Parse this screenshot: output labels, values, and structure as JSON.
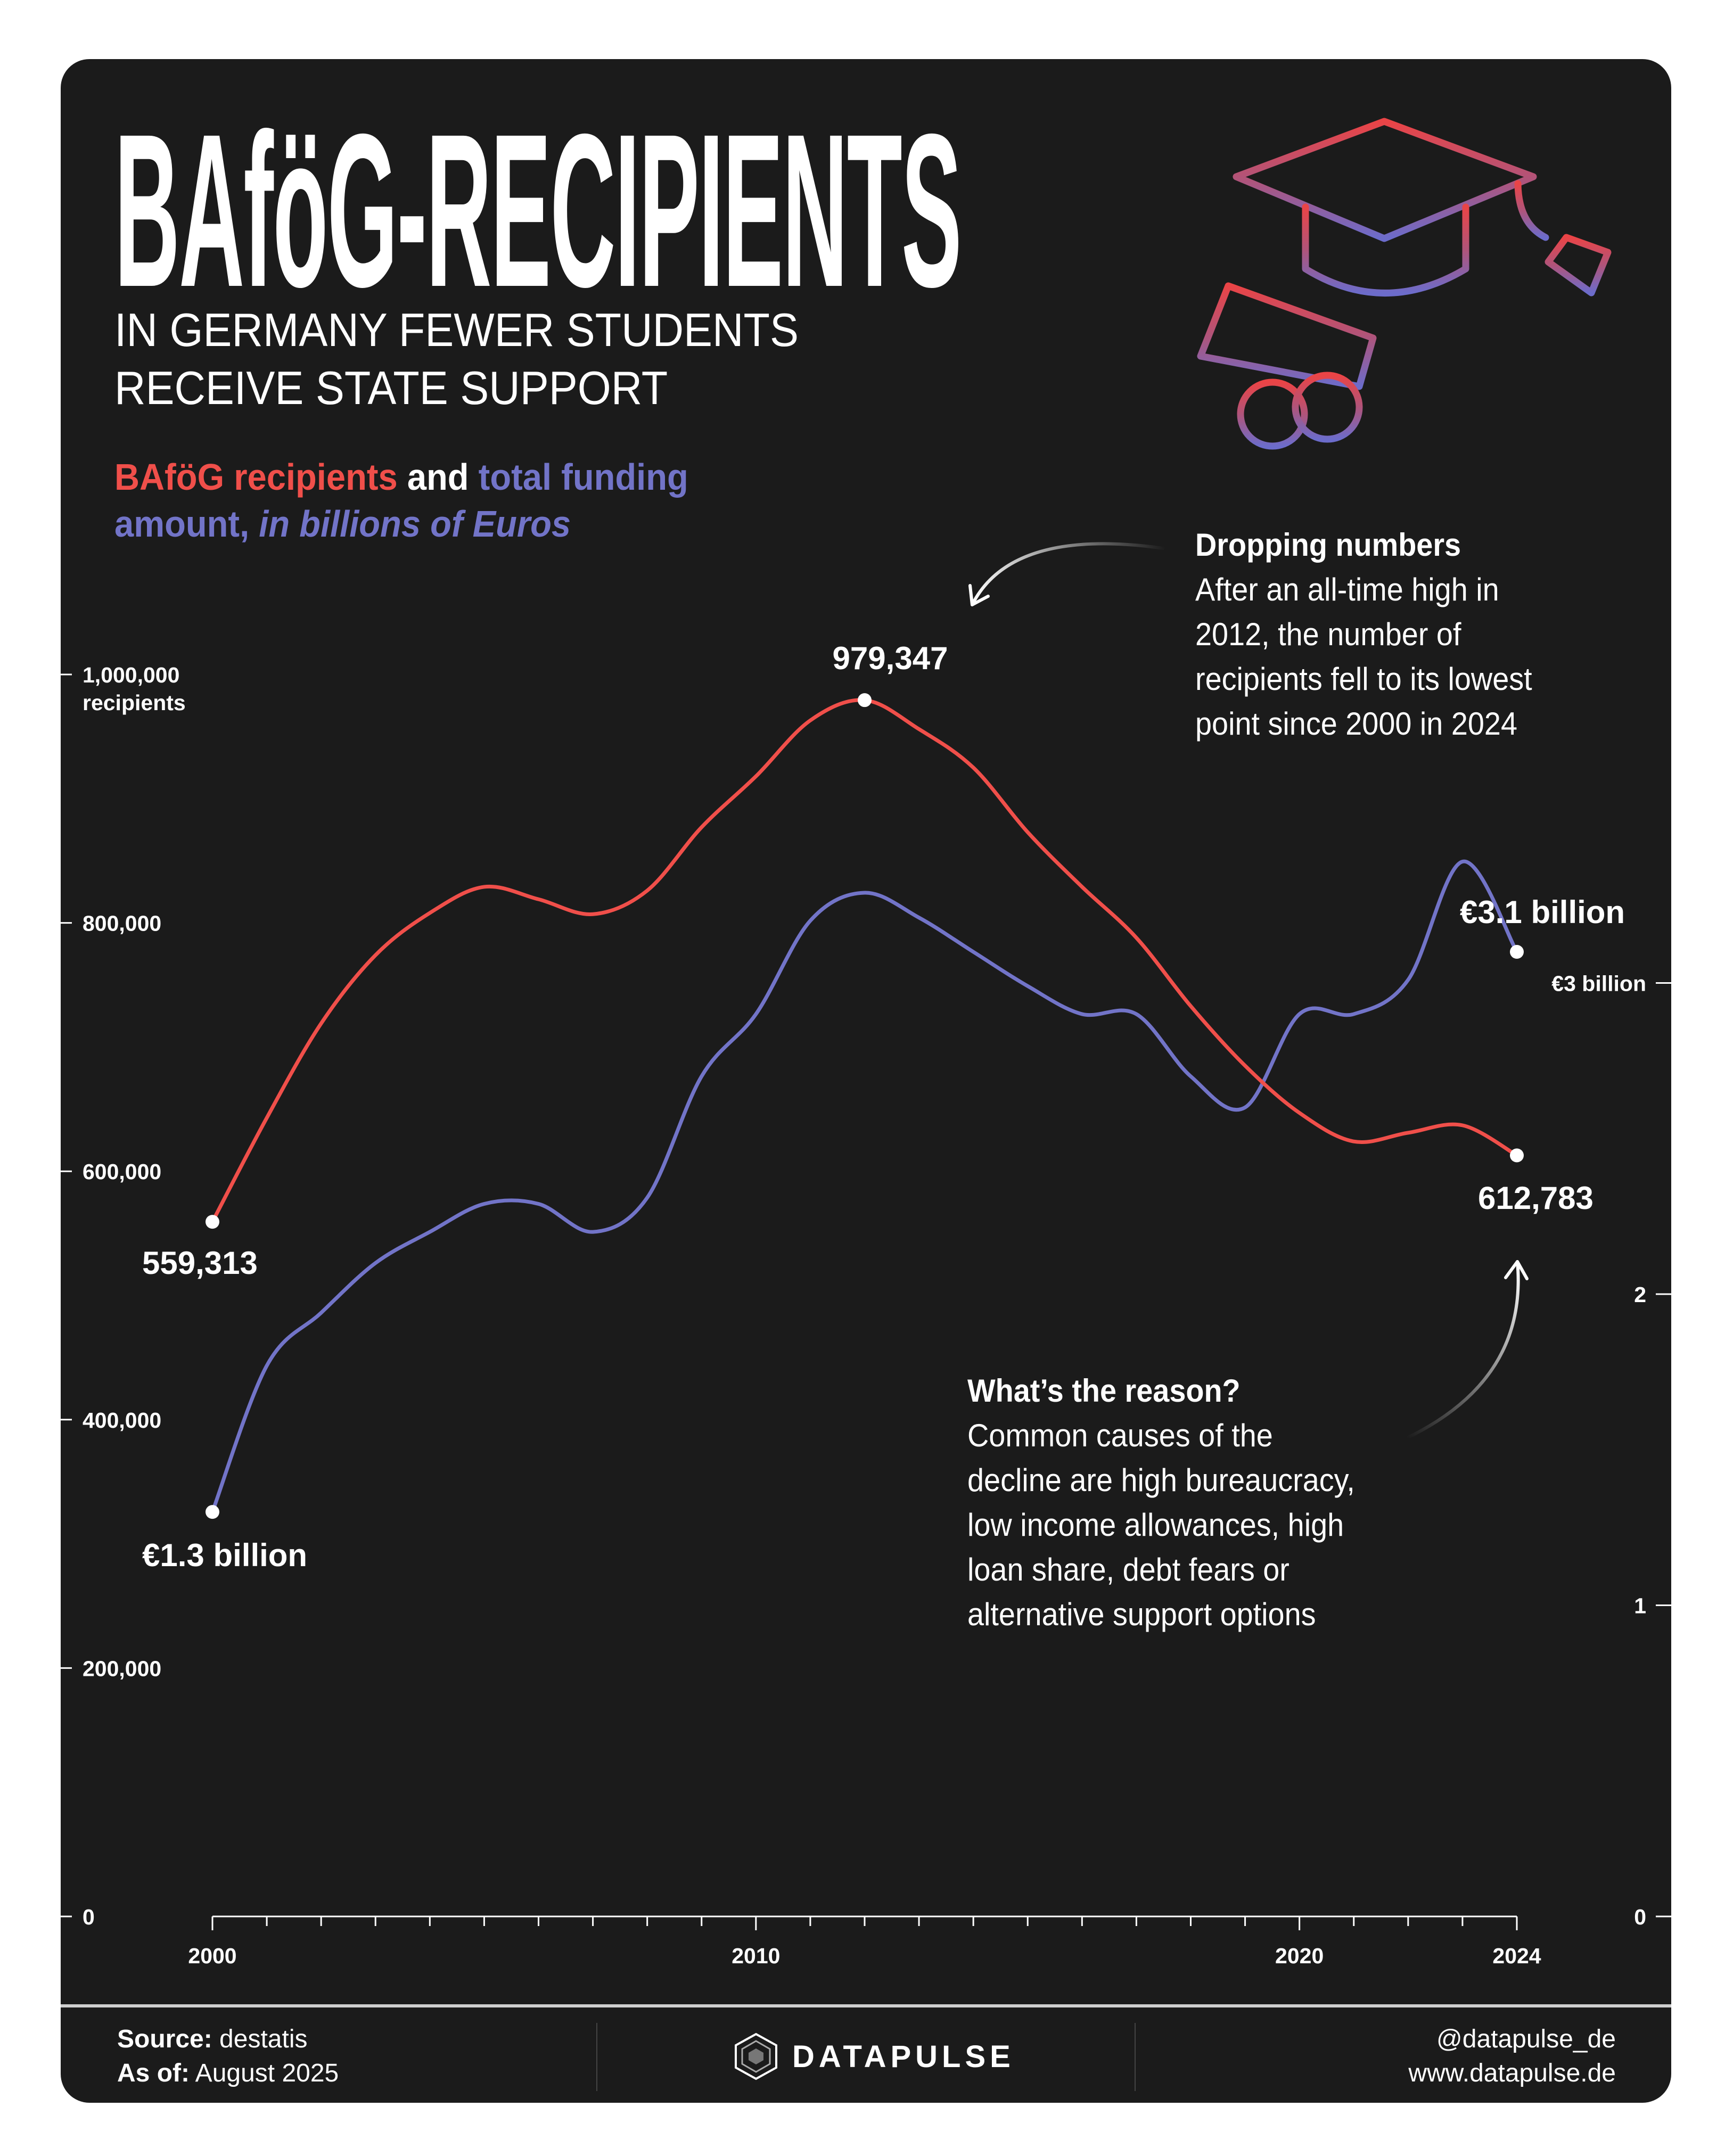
{
  "header": {
    "title": "BAföG-RECIPIENTS",
    "subtitle_lines": [
      "IN GERMANY FEWER STUDENTS",
      "RECEIVE STATE SUPPORT"
    ],
    "legend": {
      "part1": "BAföG recipients",
      "part2": " and ",
      "part3": "total funding",
      "part4": "amount, ",
      "part5": "in billions of Euros"
    },
    "icon": "graduation-cap-diploma-icon"
  },
  "colors": {
    "recipients": "#f04f4a",
    "funding": "#7274c8",
    "background": "#1b1b1b"
  },
  "annotations": {
    "dropping": {
      "title": "Dropping numbers",
      "lines": [
        "After an all-time high in",
        "2012, the number of",
        "recipients fell to its lowest",
        "point since 2000 in 2024"
      ]
    },
    "reason": {
      "title": "What’s the reason?",
      "lines": [
        "Common causes of the",
        "decline are high bureaucracy,",
        "low income allowances, high",
        "loan share, debt fears or",
        "alternative support options"
      ]
    }
  },
  "chart_data": {
    "type": "line",
    "x": [
      2000,
      2001,
      2002,
      2003,
      2004,
      2005,
      2006,
      2007,
      2008,
      2009,
      2010,
      2011,
      2012,
      2013,
      2014,
      2015,
      2016,
      2017,
      2018,
      2019,
      2020,
      2021,
      2022,
      2023,
      2024
    ],
    "series": [
      {
        "name": "BAföG recipients",
        "axis": "left",
        "color": "#f04f4a",
        "values": [
          559313,
          643000,
          719000,
          774000,
          808000,
          829000,
          819000,
          807000,
          826000,
          877000,
          918000,
          963000,
          979347,
          956000,
          925000,
          873000,
          829000,
          788000,
          733000,
          685000,
          647000,
          624000,
          631000,
          637000,
          612783
        ]
      },
      {
        "name": "total funding amount, in billions of Euros",
        "axis": "right",
        "color": "#7274c8",
        "values": [
          1.3,
          1.77,
          1.94,
          2.1,
          2.2,
          2.29,
          2.29,
          2.2,
          2.31,
          2.7,
          2.9,
          3.2,
          3.29,
          3.21,
          3.1,
          2.99,
          2.9,
          2.9,
          2.7,
          2.6,
          2.9,
          2.9,
          3.01,
          3.39,
          3.1
        ]
      }
    ],
    "x_ticks": [
      "2000",
      "2010",
      "2020",
      "2024"
    ],
    "xlim": [
      2000,
      2024
    ],
    "y_left": {
      "ylim": [
        0,
        1000000
      ],
      "ticks": [
        "0",
        "200,000",
        "400,000",
        "600,000",
        "800,000",
        "1,000,000"
      ],
      "unit_label": "recipients"
    },
    "y_right": {
      "ylim": [
        0,
        3.98
      ],
      "ticks": [
        "0",
        "1",
        "2",
        "€3 billion"
      ]
    },
    "data_labels": {
      "rec_2000": "559,313",
      "rec_2012": "979,347",
      "rec_2024": "612,783",
      "fund_2000": "€1.3 billion",
      "fund_2024": "€3.1 billion"
    },
    "grid": false
  },
  "footer": {
    "source_label": "Source:",
    "source_value": " destatis",
    "asof_label": "As of:",
    "asof_value": " August 2025",
    "brand": "DATAPULSE",
    "handle": "@datapulse_de",
    "website": "www.datapulse.de"
  }
}
